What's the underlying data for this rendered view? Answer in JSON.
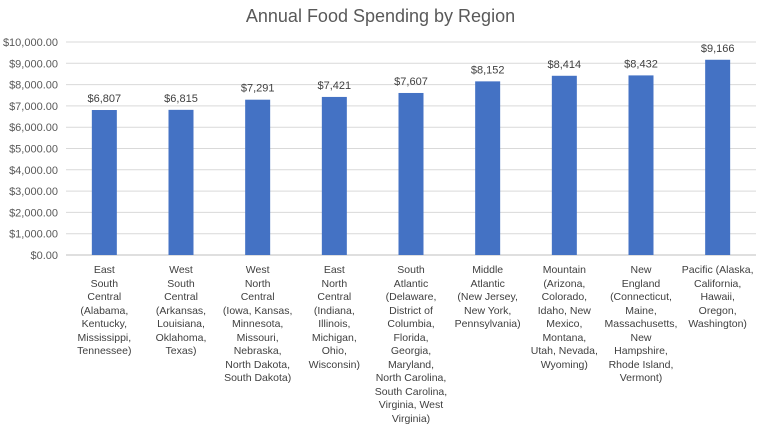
{
  "chart_data": {
    "type": "bar",
    "title": "Annual Food Spending by Region",
    "xlabel": "",
    "ylabel": "",
    "ylim": [
      0,
      10000
    ],
    "y_ticks": [
      "$0.00",
      "$1,000.00",
      "$2,000.00",
      "$3,000.00",
      "$4,000.00",
      "$5,000.00",
      "$6,000.00",
      "$7,000.00",
      "$8,000.00",
      "$9,000.00",
      "$10,000.00"
    ],
    "grid": true,
    "bar_color": "#4472C4",
    "categories": [
      [
        "East",
        "South",
        "Central",
        "(Alabama,",
        "Kentucky,",
        "Mississippi,",
        "Tennessee)"
      ],
      [
        "West",
        "South",
        "Central",
        "(Arkansas,",
        "Louisiana,",
        "Oklahoma,",
        "Texas)"
      ],
      [
        "West",
        "North",
        "Central",
        "(Iowa, Kansas,",
        "Minnesota,",
        "Missouri,",
        "Nebraska,",
        "North Dakota,",
        "South Dakota)"
      ],
      [
        "East",
        "North",
        "Central",
        "(Indiana,",
        "Illinois,",
        "Michigan,",
        "Ohio,",
        "Wisconsin)"
      ],
      [
        "South",
        "Atlantic",
        "(Delaware,",
        "District of",
        "Columbia,",
        "Florida,",
        "Georgia,",
        "Maryland,",
        "North Carolina,",
        "South Carolina,",
        "Virginia, West",
        "Virginia)"
      ],
      [
        "Middle",
        "Atlantic",
        "(New Jersey,",
        "New York,",
        "Pennsylvania)"
      ],
      [
        "Mountain",
        "(Arizona,",
        "Colorado,",
        "Idaho, New",
        "Mexico,",
        "Montana,",
        "Utah, Nevada,",
        "Wyoming)"
      ],
      [
        "New",
        "England",
        "(Connecticut,",
        "Maine,",
        "Massachusetts,",
        "New",
        "Hampshire,",
        "Rhode Island,",
        "Vermont)"
      ],
      [
        "Pacific (Alaska,",
        "California,",
        "Hawaii,",
        "Oregon,",
        "Washington)"
      ]
    ],
    "values": [
      6807,
      6815,
      7291,
      7421,
      7607,
      8152,
      8414,
      8432,
      9166
    ],
    "data_labels": [
      "$6,807",
      "$6,815",
      "$7,291",
      "$7,421",
      "$7,607",
      "$8,152",
      "$8,414",
      "$8,432",
      "$9,166"
    ]
  }
}
